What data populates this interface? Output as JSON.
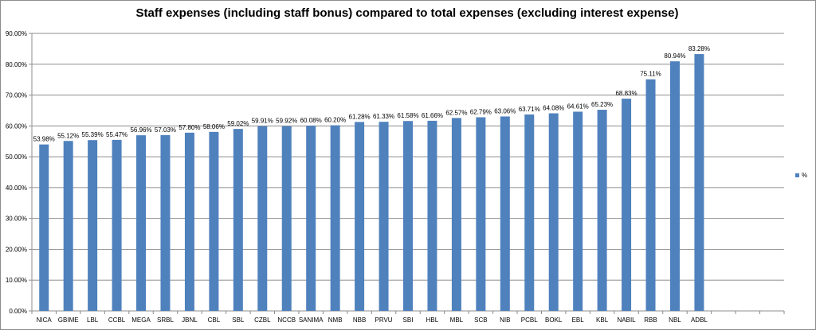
{
  "chart_data": {
    "type": "bar",
    "title": "Staff expenses (including staff bonus) compared to total expenses (excluding interest expense)",
    "categories": [
      "NICA",
      "GBIME",
      "LBL",
      "CCBL",
      "MEGA",
      "SRBL",
      "JBNL",
      "CBL",
      "SBL",
      "CZBL",
      "NCCB",
      "SANIMA",
      "NMB",
      "NBB",
      "PRVU",
      "SBI",
      "HBL",
      "MBL",
      "SCB",
      "NIB",
      "PCBL",
      "BOKL",
      "EBL",
      "KBL",
      "NABIL",
      "RBB",
      "NBL",
      "ADBL"
    ],
    "series": [
      {
        "name": "%",
        "values": [
          53.98,
          55.12,
          55.39,
          55.47,
          56.96,
          57.03,
          57.8,
          58.06,
          59.02,
          59.91,
          59.92,
          60.08,
          60.2,
          61.28,
          61.33,
          61.58,
          61.66,
          62.57,
          62.79,
          63.06,
          63.71,
          64.08,
          64.61,
          65.23,
          68.83,
          75.11,
          80.94,
          83.28
        ],
        "labels": [
          "53.98%",
          "55.12%",
          "55.39%",
          "55.47%",
          "56.96%",
          "57.03%",
          "57.80%",
          "58.06%",
          "59.02%",
          "59.91%",
          "59.92%",
          "60.08%",
          "60.20%",
          "61.28%",
          "61.33%",
          "61.58%",
          "61.66%",
          "62.57%",
          "62.79%",
          "63.06%",
          "63.71%",
          "64.08%",
          "64.61%",
          "65.23%",
          "68.83%",
          "75.11%",
          "80.94%",
          "83.28%"
        ]
      }
    ],
    "y_ticks": [
      "0.00%",
      "10.00%",
      "20.00%",
      "30.00%",
      "40.00%",
      "50.00%",
      "60.00%",
      "70.00%",
      "80.00%",
      "90.00%"
    ],
    "ylim": [
      0,
      90
    ],
    "grid": true,
    "legend_position": "right",
    "colors": {
      "bar": "#4f81bd",
      "grid": "#8c8c8c",
      "axis": "#8c8c8c"
    }
  }
}
